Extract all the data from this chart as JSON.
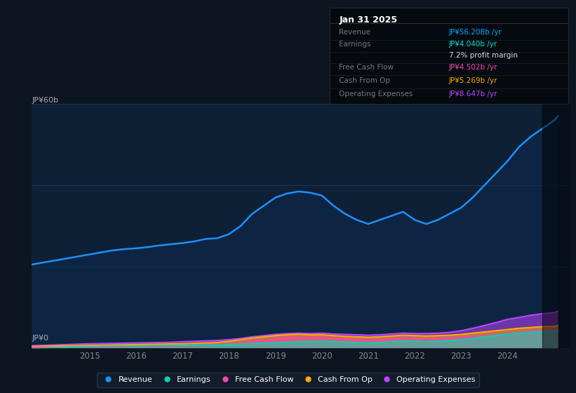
{
  "bg_color": "#0c1520",
  "plot_bg_color": "#0d2035",
  "plot_bg_right": "#050d18",
  "ylabel": "JP¥60b",
  "y0label": "JP¥0",
  "ylim": [
    0,
    60
  ],
  "xlim": [
    2013.75,
    2025.35
  ],
  "forecast_start": 2024.75,
  "xticks": [
    2015,
    2016,
    2017,
    2018,
    2019,
    2020,
    2021,
    2022,
    2023,
    2024
  ],
  "info_box": {
    "date": "Jan 31 2025",
    "rows": [
      {
        "label": "Revenue",
        "value": "JP¥56.208b /yr",
        "value_color": "#00aaff",
        "sep_after": false
      },
      {
        "label": "Earnings",
        "value": "JP¥4.040b /yr",
        "value_color": "#00e5cc",
        "sep_after": false
      },
      {
        "label": "",
        "value": "7.2% profit margin",
        "value_color": "#dddddd",
        "sep_after": true
      },
      {
        "label": "Free Cash Flow",
        "value": "JP¥4.502b /yr",
        "value_color": "#ff44aa",
        "sep_after": true
      },
      {
        "label": "Cash From Op",
        "value": "JP¥5.269b /yr",
        "value_color": "#ffaa00",
        "sep_after": true
      },
      {
        "label": "Operating Expenses",
        "value": "JP¥8.647b /yr",
        "value_color": "#bb44ff",
        "sep_after": false
      }
    ]
  },
  "years": [
    2013.75,
    2014.0,
    2014.25,
    2014.5,
    2014.75,
    2015.0,
    2015.25,
    2015.5,
    2015.75,
    2016.0,
    2016.25,
    2016.5,
    2016.75,
    2017.0,
    2017.25,
    2017.5,
    2017.75,
    2018.0,
    2018.25,
    2018.5,
    2018.75,
    2019.0,
    2019.25,
    2019.5,
    2019.75,
    2020.0,
    2020.25,
    2020.5,
    2020.75,
    2021.0,
    2021.25,
    2021.5,
    2021.75,
    2022.0,
    2022.25,
    2022.5,
    2022.75,
    2023.0,
    2023.25,
    2023.5,
    2023.75,
    2024.0,
    2024.25,
    2024.5,
    2024.75,
    2025.0,
    2025.08
  ],
  "revenue": [
    20.5,
    21.0,
    21.5,
    22.0,
    22.5,
    23.0,
    23.5,
    24.0,
    24.3,
    24.5,
    24.8,
    25.2,
    25.5,
    25.8,
    26.2,
    26.8,
    27.0,
    28.0,
    30.0,
    33.0,
    35.0,
    37.0,
    38.0,
    38.5,
    38.2,
    37.5,
    35.0,
    33.0,
    31.5,
    30.5,
    31.5,
    32.5,
    33.5,
    31.5,
    30.5,
    31.5,
    33.0,
    34.5,
    37.0,
    40.0,
    43.0,
    46.0,
    49.5,
    52.0,
    54.0,
    56.0,
    57.0
  ],
  "earnings": [
    -0.3,
    -0.1,
    0.0,
    0.1,
    0.2,
    0.3,
    0.35,
    0.4,
    0.45,
    0.4,
    0.45,
    0.5,
    0.55,
    0.6,
    0.65,
    0.7,
    0.75,
    0.8,
    0.9,
    1.0,
    1.1,
    1.2,
    1.3,
    1.5,
    1.5,
    1.6,
    1.5,
    1.4,
    1.3,
    1.2,
    1.3,
    1.5,
    1.7,
    1.6,
    1.5,
    1.6,
    1.7,
    2.0,
    2.3,
    2.7,
    3.0,
    3.3,
    3.6,
    3.8,
    4.0,
    4.04,
    4.1
  ],
  "free_cash_flow": [
    0.1,
    0.1,
    0.1,
    0.0,
    0.0,
    0.1,
    0.1,
    0.2,
    0.2,
    0.3,
    0.3,
    0.35,
    0.4,
    0.5,
    0.5,
    0.6,
    0.7,
    0.9,
    1.2,
    1.6,
    1.8,
    2.2,
    2.5,
    2.5,
    2.4,
    2.5,
    2.3,
    2.2,
    2.0,
    1.9,
    2.0,
    2.2,
    2.4,
    2.3,
    2.1,
    2.2,
    2.3,
    2.5,
    2.7,
    2.9,
    3.2,
    3.4,
    3.7,
    4.0,
    4.3,
    4.5,
    4.6
  ],
  "cash_from_op": [
    0.3,
    0.4,
    0.45,
    0.5,
    0.55,
    0.6,
    0.65,
    0.7,
    0.75,
    0.8,
    0.85,
    0.9,
    0.95,
    1.0,
    1.1,
    1.2,
    1.3,
    1.6,
    2.0,
    2.4,
    2.7,
    3.0,
    3.2,
    3.3,
    3.2,
    3.2,
    3.0,
    2.8,
    2.7,
    2.6,
    2.7,
    2.9,
    3.1,
    3.0,
    2.9,
    3.0,
    3.1,
    3.3,
    3.6,
    3.9,
    4.2,
    4.5,
    4.8,
    5.0,
    5.2,
    5.27,
    5.4
  ],
  "op_expenses": [
    0.5,
    0.6,
    0.7,
    0.8,
    0.9,
    1.0,
    1.05,
    1.1,
    1.15,
    1.2,
    1.25,
    1.3,
    1.35,
    1.5,
    1.6,
    1.7,
    1.8,
    2.0,
    2.3,
    2.7,
    3.0,
    3.3,
    3.5,
    3.6,
    3.5,
    3.6,
    3.4,
    3.3,
    3.2,
    3.1,
    3.2,
    3.4,
    3.6,
    3.5,
    3.5,
    3.6,
    3.8,
    4.2,
    4.8,
    5.5,
    6.2,
    7.0,
    7.5,
    8.0,
    8.4,
    8.65,
    9.0
  ],
  "revenue_color": "#1e90ff",
  "earnings_color": "#00d4b0",
  "fcf_color": "#ff44aa",
  "cfop_color": "#ffaa00",
  "opex_color": "#bb44ff",
  "legend_items": [
    {
      "label": "Revenue",
      "color": "#1e90ff"
    },
    {
      "label": "Earnings",
      "color": "#00d4b0"
    },
    {
      "label": "Free Cash Flow",
      "color": "#ff44aa"
    },
    {
      "label": "Cash From Op",
      "color": "#ffaa00"
    },
    {
      "label": "Operating Expenses",
      "color": "#bb44ff"
    }
  ]
}
